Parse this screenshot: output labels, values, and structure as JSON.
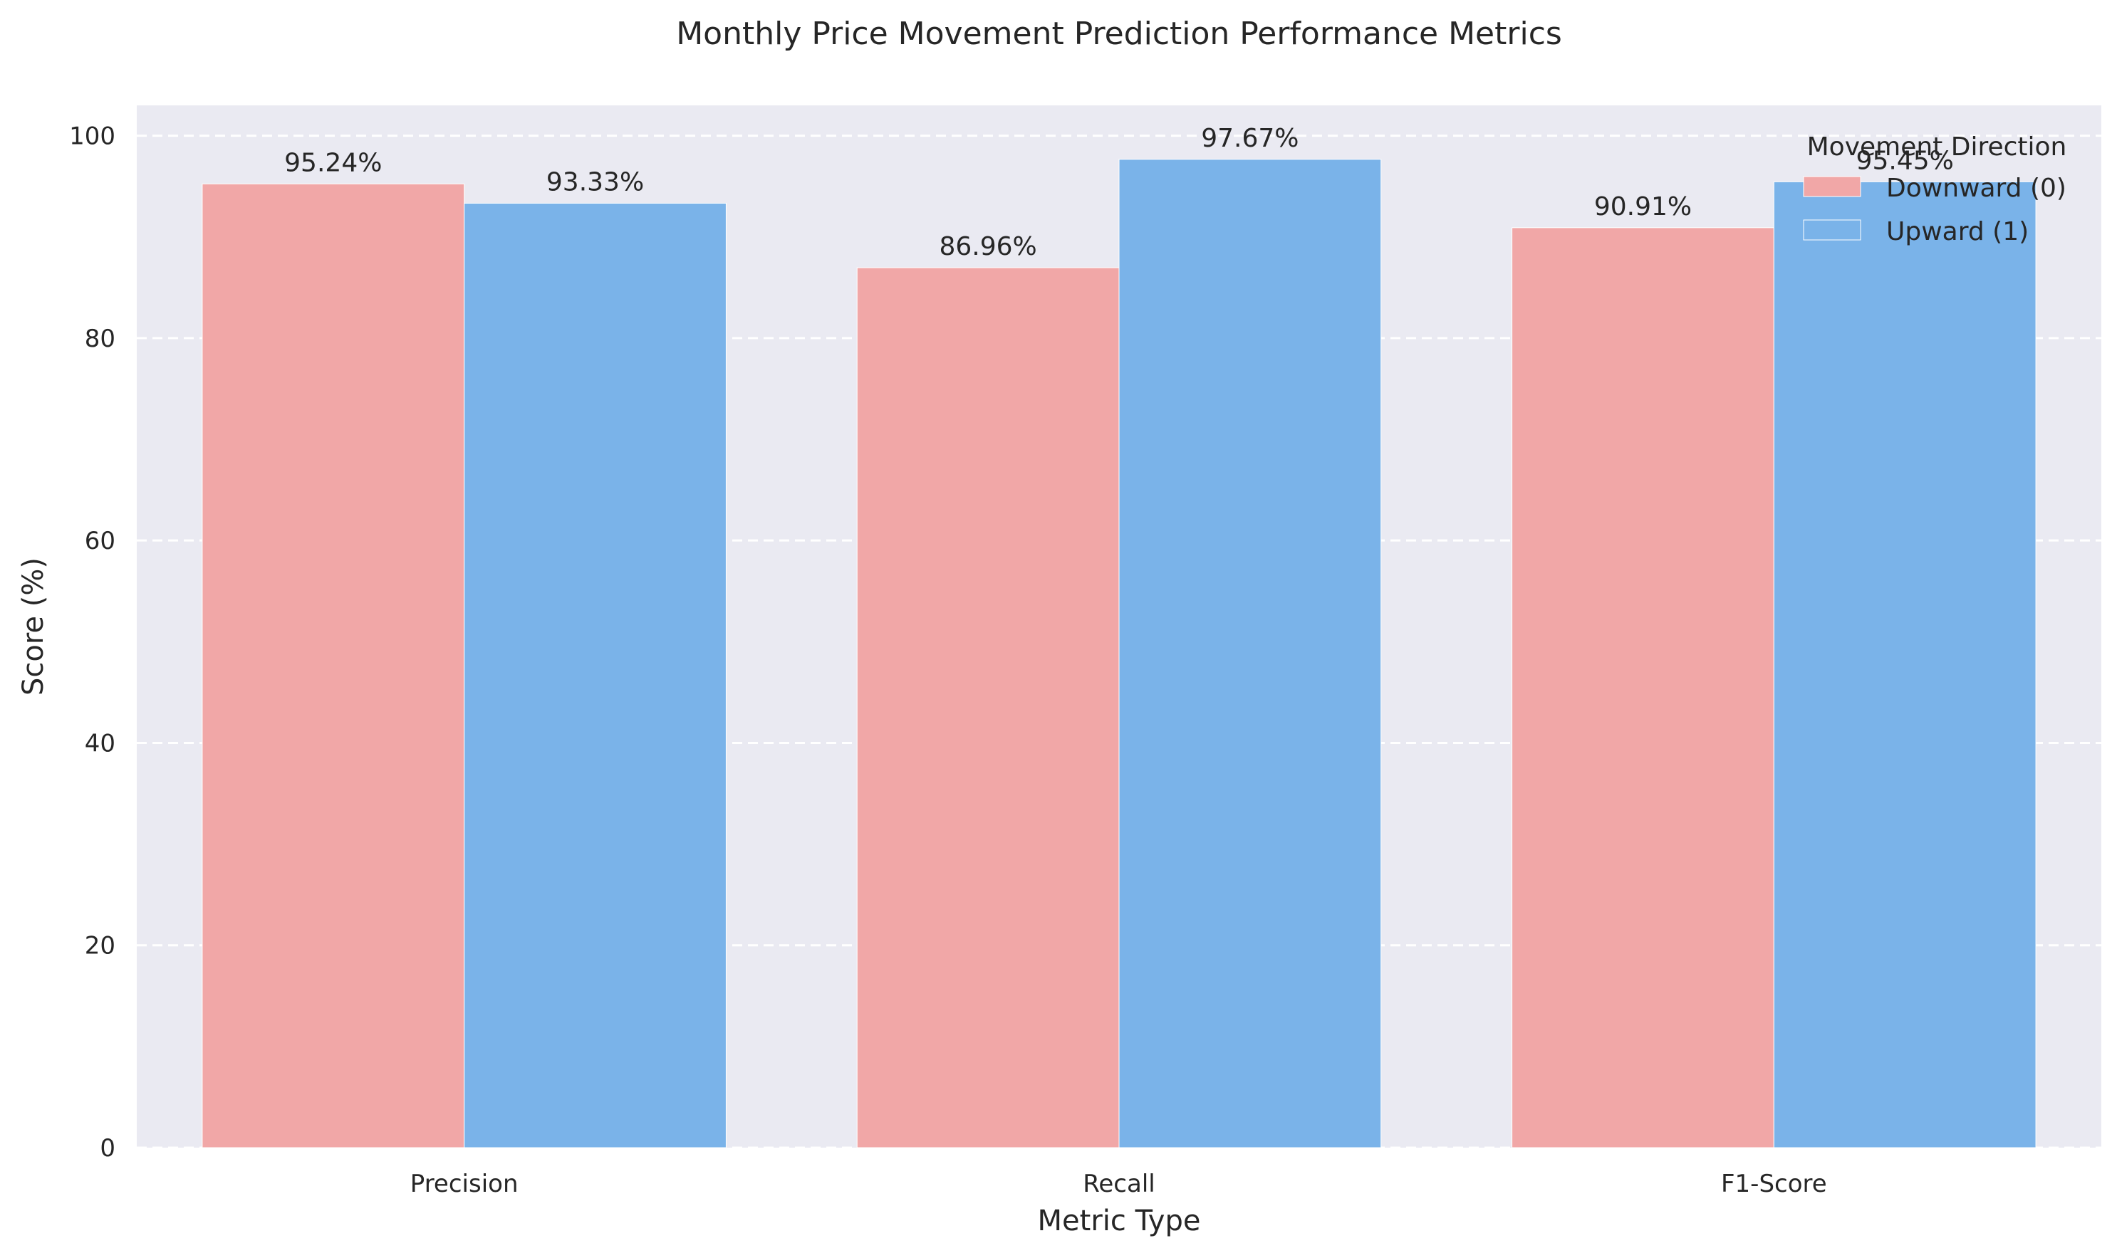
{
  "chart_data": {
    "type": "bar",
    "title": "Monthly Price Movement Prediction Performance Metrics",
    "xlabel": "Metric Type",
    "ylabel": "Score (%)",
    "categories": [
      "Precision",
      "Recall",
      "F1-Score"
    ],
    "series": [
      {
        "name": "Downward (0)",
        "values": [
          95.24,
          86.96,
          90.91
        ],
        "labels": [
          "95.24%",
          "86.96%",
          "90.91%"
        ],
        "color": "#f1a7a7"
      },
      {
        "name": "Upward (1)",
        "values": [
          93.33,
          97.67,
          95.45
        ],
        "labels": [
          "93.33%",
          "97.67%",
          "95.45%"
        ],
        "color": "#7ab3e9"
      }
    ],
    "ylim": [
      0,
      103
    ],
    "yticks": [
      0,
      20,
      40,
      60,
      80,
      100
    ],
    "grid": true,
    "grid_axis": "y",
    "background_color": "#eaeaf2",
    "legend": {
      "title": "Movement Direction",
      "placement": "top-right"
    }
  }
}
